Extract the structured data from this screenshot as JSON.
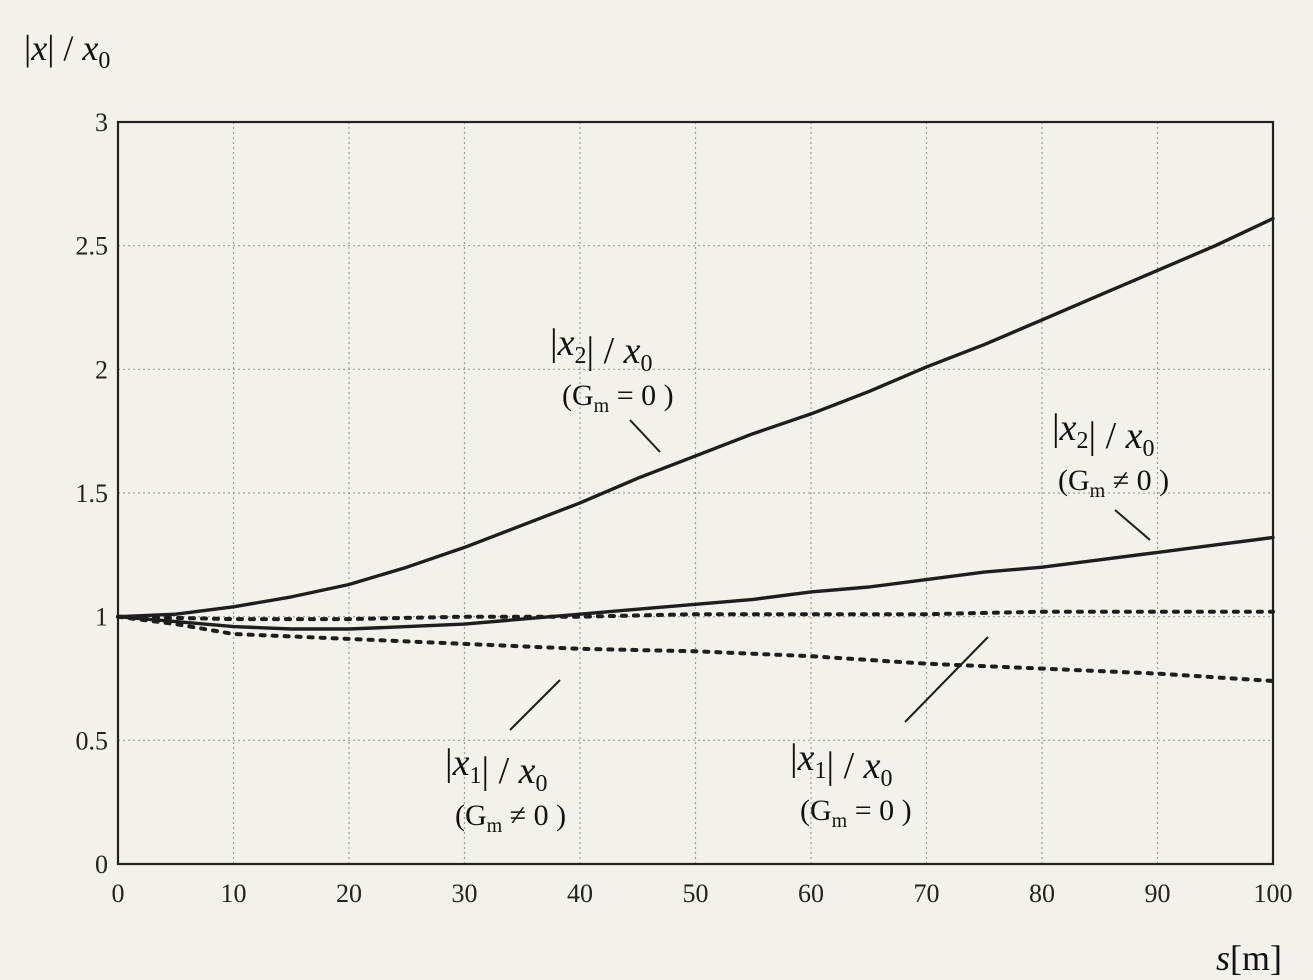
{
  "chart_data": {
    "type": "line",
    "xlabel": "s[m]",
    "ylabel": "|x| / x0",
    "xlim": [
      0,
      100
    ],
    "ylim": [
      0,
      3
    ],
    "x_ticks": [
      "0",
      "10",
      "20",
      "30",
      "40",
      "50",
      "60",
      "70",
      "80",
      "90",
      "100"
    ],
    "y_ticks": [
      "0",
      "0.5",
      "1",
      "1.5",
      "2",
      "2.5",
      "3"
    ],
    "grid": true,
    "colors": {
      "line": "#1e1e1e",
      "grid": "#9c9c9c",
      "frame": "#222222"
    },
    "series": [
      {
        "id": "x2_gm0",
        "style": "solid",
        "x": [
          0,
          5,
          10,
          15,
          20,
          25,
          30,
          35,
          40,
          45,
          50,
          55,
          60,
          65,
          70,
          75,
          80,
          85,
          90,
          95,
          100
        ],
        "values": [
          1.0,
          1.01,
          1.04,
          1.08,
          1.13,
          1.2,
          1.28,
          1.37,
          1.46,
          1.56,
          1.65,
          1.74,
          1.82,
          1.91,
          2.01,
          2.1,
          2.2,
          2.3,
          2.4,
          2.5,
          2.61
        ]
      },
      {
        "id": "x2_gmne0",
        "style": "solid",
        "x": [
          0,
          5,
          10,
          15,
          20,
          25,
          30,
          35,
          40,
          45,
          50,
          55,
          60,
          65,
          70,
          75,
          80,
          85,
          90,
          95,
          100
        ],
        "values": [
          1.0,
          0.98,
          0.96,
          0.95,
          0.95,
          0.96,
          0.97,
          0.99,
          1.01,
          1.03,
          1.05,
          1.07,
          1.1,
          1.12,
          1.15,
          1.18,
          1.2,
          1.23,
          1.26,
          1.29,
          1.32
        ]
      },
      {
        "id": "x1_gm0",
        "style": "dotted",
        "x": [
          0,
          10,
          20,
          30,
          40,
          50,
          60,
          70,
          80,
          90,
          100
        ],
        "values": [
          1.0,
          0.99,
          0.99,
          1.0,
          1.0,
          1.01,
          1.01,
          1.01,
          1.02,
          1.02,
          1.02
        ]
      },
      {
        "id": "x1_gmne0",
        "style": "dotted",
        "x": [
          0,
          5,
          10,
          20,
          30,
          40,
          50,
          60,
          70,
          80,
          90,
          100
        ],
        "values": [
          1.0,
          0.97,
          0.93,
          0.91,
          0.89,
          0.87,
          0.86,
          0.84,
          0.81,
          0.79,
          0.77,
          0.74
        ]
      }
    ],
    "annotations": [
      {
        "id": "x2_gm0",
        "label_main": "|x2| / x0",
        "label_cond": "(Gm = 0 )"
      },
      {
        "id": "x2_gmne0",
        "label_main": "|x2| / x0",
        "label_cond": "(Gm ≠ 0 )"
      },
      {
        "id": "x1_gmne0",
        "label_main": "|x1| / x0",
        "label_cond": "(Gm ≠ 0 )"
      },
      {
        "id": "x1_gm0",
        "label_main": "|x1| / x0",
        "label_cond": "(Gm = 0 )"
      }
    ]
  }
}
